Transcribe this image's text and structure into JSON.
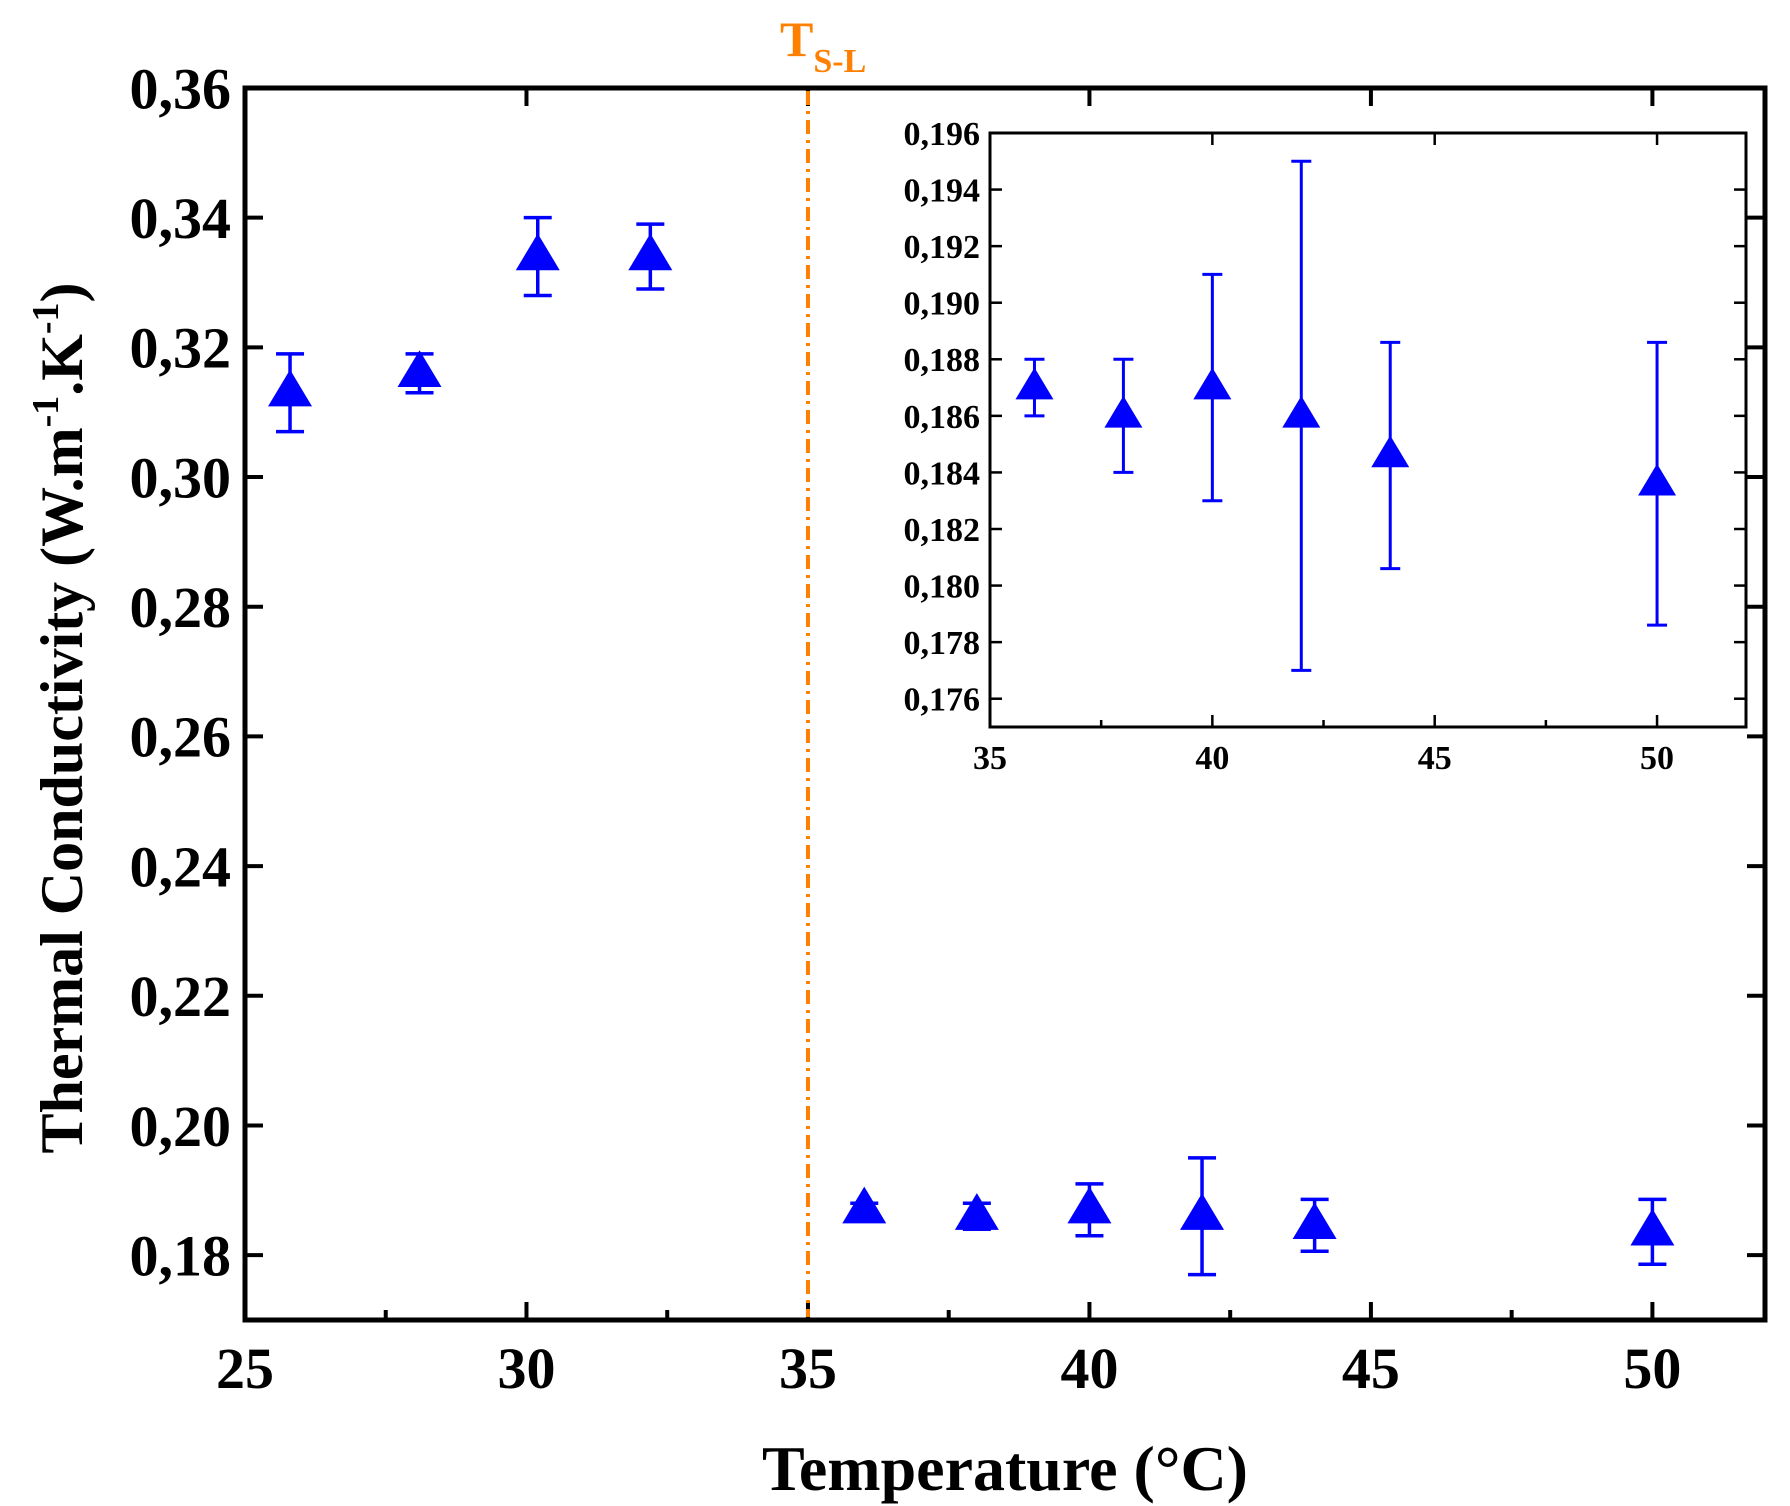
{
  "colors": {
    "series": "#0000ff",
    "threshold": "#ff8000",
    "axis": "#000000"
  },
  "chart_data": [
    {
      "type": "scatter",
      "panel": "main",
      "xlabel": "Temperature (°C)",
      "ylabel_parts": {
        "base": "Thermal Conductivity (W.m",
        "sup1": "-1",
        "mid": ".K",
        "sup2": "-1",
        "end": ")"
      },
      "xlim": [
        25,
        52
      ],
      "ylim": [
        0.17,
        0.36
      ],
      "x_ticks": [
        25,
        30,
        35,
        40,
        45,
        50
      ],
      "x_tick_labels": [
        "25",
        "30",
        "35",
        "40",
        "45",
        "50"
      ],
      "y_ticks": [
        0.18,
        0.2,
        0.22,
        0.24,
        0.26,
        0.28,
        0.3,
        0.32,
        0.34,
        0.36
      ],
      "y_tick_labels": [
        "0,18",
        "0,20",
        "0,22",
        "0,24",
        "0,26",
        "0,28",
        "0,30",
        "0,32",
        "0,34",
        "0,36"
      ],
      "grid": false,
      "marker": "triangle-up",
      "vline": {
        "x": 35,
        "label_main": "T",
        "label_sub": "S-L",
        "style": "dash-dot"
      },
      "series": [
        {
          "x": [
            25.8,
            28.1,
            30.2,
            32.2,
            36,
            38,
            40,
            42,
            44,
            50
          ],
          "y": [
            0.313,
            0.316,
            0.334,
            0.334,
            0.187,
            0.186,
            0.187,
            0.186,
            0.1846,
            0.1836
          ],
          "y_err_low": [
            0.307,
            0.313,
            0.328,
            0.329,
            0.186,
            0.184,
            0.183,
            0.177,
            0.1806,
            0.1786
          ],
          "y_err_high": [
            0.319,
            0.319,
            0.34,
            0.339,
            0.188,
            0.188,
            0.191,
            0.195,
            0.1886,
            0.1886
          ]
        }
      ]
    },
    {
      "type": "scatter",
      "panel": "inset",
      "xlim": [
        35,
        52
      ],
      "ylim": [
        0.175,
        0.196
      ],
      "x_ticks": [
        35,
        40,
        45,
        50
      ],
      "x_tick_labels": [
        "35",
        "40",
        "45",
        "50"
      ],
      "y_ticks": [
        0.176,
        0.178,
        0.18,
        0.182,
        0.184,
        0.186,
        0.188,
        0.19,
        0.192,
        0.194,
        0.196
      ],
      "y_tick_labels": [
        "0,176",
        "0,178",
        "0,180",
        "0,182",
        "0,184",
        "0,186",
        "0,188",
        "0,190",
        "0,192",
        "0,194",
        "0,196"
      ],
      "grid": false,
      "marker": "triangle-up",
      "series": [
        {
          "x": [
            36,
            38,
            40,
            42,
            44,
            50
          ],
          "y": [
            0.187,
            0.186,
            0.187,
            0.186,
            0.1846,
            0.1836
          ],
          "y_err_low": [
            0.186,
            0.184,
            0.183,
            0.177,
            0.1806,
            0.1786
          ],
          "y_err_high": [
            0.188,
            0.188,
            0.191,
            0.195,
            0.1886,
            0.1886
          ]
        }
      ]
    }
  ]
}
